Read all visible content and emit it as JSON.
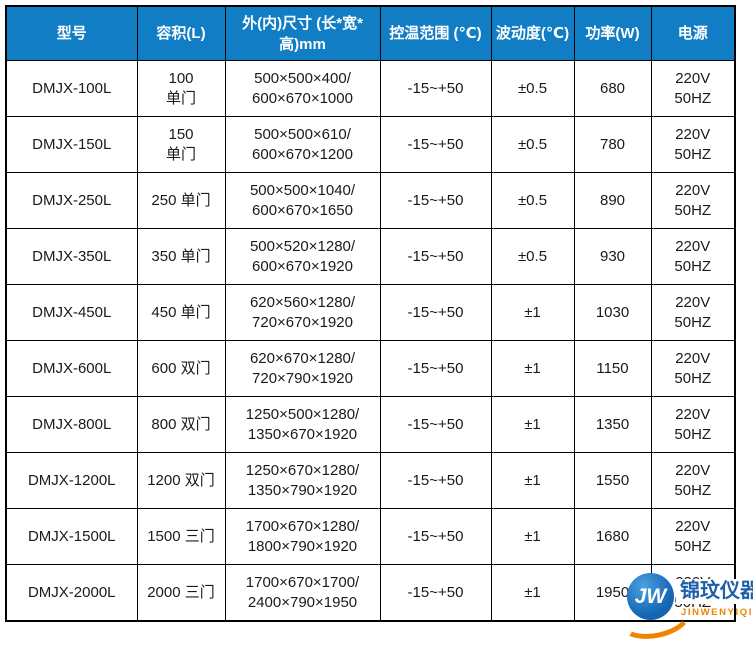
{
  "table": {
    "columns": [
      {
        "key": "model",
        "label": "型号"
      },
      {
        "key": "capacity",
        "label": "容积(L)"
      },
      {
        "key": "dimensions",
        "label": "外(内)尺寸 (长*宽*\n高)mm"
      },
      {
        "key": "temp_range",
        "label": "控温范围 (℃)"
      },
      {
        "key": "fluctuation",
        "label": "波动度(℃)"
      },
      {
        "key": "power",
        "label": "功率(W)"
      },
      {
        "key": "supply",
        "label": "电源"
      }
    ],
    "rows": [
      {
        "model": "DMJX-100L",
        "capacity": "100\n单门",
        "dimensions": "500×500×400/\n600×670×1000",
        "temp_range": "-15~+50",
        "fluctuation": "±0.5",
        "power": "680",
        "supply": "220V\n50HZ"
      },
      {
        "model": "DMJX-150L",
        "capacity": "150\n单门",
        "dimensions": "500×500×610/\n600×670×1200",
        "temp_range": "-15~+50",
        "fluctuation": "±0.5",
        "power": "780",
        "supply": "220V\n50HZ"
      },
      {
        "model": "DMJX-250L",
        "capacity": "250 单门",
        "dimensions": "500×500×1040/\n600×670×1650",
        "temp_range": "-15~+50",
        "fluctuation": "±0.5",
        "power": "890",
        "supply": "220V\n50HZ"
      },
      {
        "model": "DMJX-350L",
        "capacity": "350 单门",
        "dimensions": "500×520×1280/\n600×670×1920",
        "temp_range": "-15~+50",
        "fluctuation": "±0.5",
        "power": "930",
        "supply": "220V\n50HZ"
      },
      {
        "model": "DMJX-450L",
        "capacity": "450 单门",
        "dimensions": "620×560×1280/\n720×670×1920",
        "temp_range": "-15~+50",
        "fluctuation": "±1",
        "power": "1030",
        "supply": "220V\n50HZ"
      },
      {
        "model": "DMJX-600L",
        "capacity": "600 双门",
        "dimensions": "620×670×1280/\n720×790×1920",
        "temp_range": "-15~+50",
        "fluctuation": "±1",
        "power": "1150",
        "supply": "220V\n50HZ"
      },
      {
        "model": "DMJX-800L",
        "capacity": "800 双门",
        "dimensions": "1250×500×1280/\n1350×670×1920",
        "temp_range": "-15~+50",
        "fluctuation": "±1",
        "power": "1350",
        "supply": "220V\n50HZ"
      },
      {
        "model": "DMJX-1200L",
        "capacity": "1200 双门",
        "dimensions": "1250×670×1280/\n1350×790×1920",
        "temp_range": "-15~+50",
        "fluctuation": "±1",
        "power": "1550",
        "supply": "220V\n50HZ"
      },
      {
        "model": "DMJX-1500L",
        "capacity": "1500 三门",
        "dimensions": "1700×670×1280/\n1800×790×1920",
        "temp_range": "-15~+50",
        "fluctuation": "±1",
        "power": "1680",
        "supply": "220V\n50HZ"
      },
      {
        "model": "DMJX-2000L",
        "capacity": "2000 三门",
        "dimensions": "1700×670×1700/\n2400×790×1950",
        "temp_range": "-15~+50",
        "fluctuation": "±1",
        "power": "1950",
        "supply": "220V\n50HZ"
      }
    ]
  },
  "watermark": {
    "monogram": "JW",
    "name": "锦玟仪器",
    "subtitle": "JINWENYIQI"
  },
  "colors": {
    "header_bg": "#117dc4",
    "header_fg": "#ffffff",
    "cell_fg": "#1a1a1a",
    "border": "#000000",
    "logo_blue": "#1565b4",
    "logo_orange": "#f08300",
    "name_blue": "#1c5fa8"
  }
}
